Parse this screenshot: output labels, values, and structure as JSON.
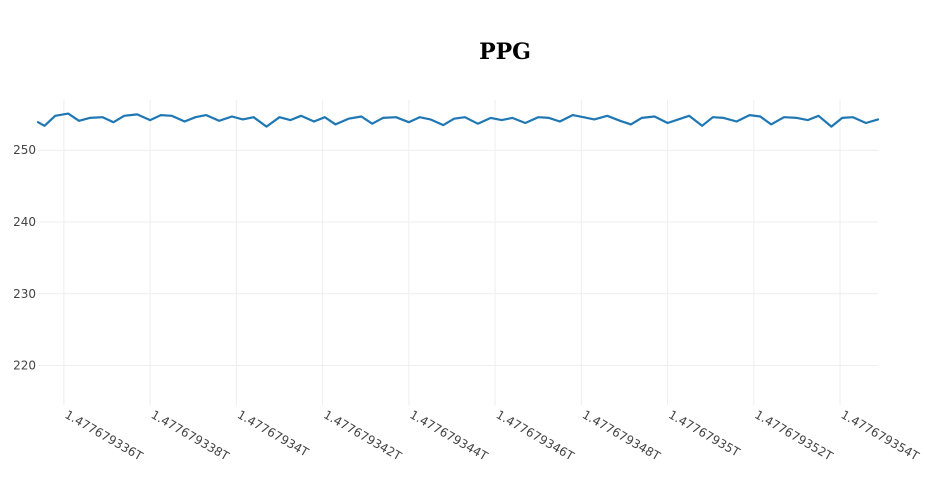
{
  "chart_data": {
    "type": "line",
    "title": "PPG",
    "xlabel": "",
    "ylabel": "",
    "grid": true,
    "legend": "none",
    "color": "#1f77b4",
    "xlim": [
      1.4776793354,
      1.47767935488
    ],
    "ylim": [
      214.5,
      257
    ],
    "y_ticks": [
      {
        "value": 220,
        "label": "220"
      },
      {
        "value": 230,
        "label": "230"
      },
      {
        "value": 240,
        "label": "240"
      },
      {
        "value": 250,
        "label": "250"
      }
    ],
    "x_ticks": [
      {
        "value": 1.477679336,
        "label": "1.477679336T"
      },
      {
        "value": 1.477679338,
        "label": "1.477679338T"
      },
      {
        "value": 1.47767934,
        "label": "1.47767934T"
      },
      {
        "value": 1.477679342,
        "label": "1.477679342T"
      },
      {
        "value": 1.477679344,
        "label": "1.477679344T"
      },
      {
        "value": 1.477679346,
        "label": "1.477679346T"
      },
      {
        "value": 1.477679348,
        "label": "1.477679348T"
      },
      {
        "value": 1.47767935,
        "label": "1.47767935T"
      },
      {
        "value": 1.477679352,
        "label": "1.477679352T"
      },
      {
        "value": 1.477679354,
        "label": "1.477679354T"
      }
    ],
    "series": [
      {
        "x": [
          1.4776793354,
          1.47767933555,
          1.4776793358,
          1.4776793361,
          1.47767933635,
          1.4776793366,
          1.4776793369,
          1.47767933715,
          1.4776793374,
          1.4776793377,
          1.477679338,
          1.47767933825,
          1.4776793385,
          1.4776793388,
          1.47767933905,
          1.4776793393,
          1.4776793396,
          1.4776793399,
          1.47767934015,
          1.4776793404,
          1.4776793407,
          1.477679341,
          1.47767934125,
          1.4776793415,
          1.4776793418,
          1.47767934205,
          1.4776793423,
          1.4776793426,
          1.4776793429,
          1.47767934315,
          1.4776793434,
          1.4776793437,
          1.477679344,
          1.47767934425,
          1.4776793445,
          1.4776793448,
          1.47767934505,
          1.4776793453,
          1.4776793456,
          1.4776793459,
          1.47767934615,
          1.4776793464,
          1.4776793467,
          1.477679347,
          1.47767934725,
          1.4776793475,
          1.4776793478,
          1.47767934805,
          1.4776793483,
          1.4776793486,
          1.4776793489,
          1.47767934915,
          1.4776793494,
          1.4776793497,
          1.47767935,
          1.47767935025,
          1.4776793505,
          1.4776793508,
          1.47767935105,
          1.4776793513,
          1.4776793516,
          1.4776793519,
          1.47767935215,
          1.4776793524,
          1.4776793527,
          1.477679353,
          1.47767935325,
          1.4776793535,
          1.4776793538,
          1.47767935405,
          1.4776793543,
          1.4776793546,
          1.47767935488
        ],
        "y": [
          253.9,
          253.4,
          254.8,
          255.1,
          254.1,
          254.5,
          254.6,
          253.9,
          254.8,
          255.0,
          254.2,
          254.9,
          254.8,
          254.0,
          254.6,
          254.9,
          254.1,
          254.7,
          254.3,
          254.6,
          253.3,
          254.6,
          254.2,
          254.8,
          254.0,
          254.6,
          253.6,
          254.4,
          254.7,
          253.7,
          254.5,
          254.6,
          253.9,
          254.6,
          254.3,
          253.5,
          254.4,
          254.6,
          253.7,
          254.5,
          254.2,
          254.5,
          253.8,
          254.6,
          254.5,
          254.0,
          254.9,
          254.6,
          254.3,
          254.8,
          254.1,
          253.6,
          254.5,
          254.7,
          253.8,
          254.3,
          254.8,
          253.4,
          254.6,
          254.5,
          254.0,
          254.9,
          254.7,
          253.6,
          254.6,
          254.5,
          254.2,
          254.8,
          253.3,
          254.5,
          254.6,
          253.8,
          254.3
        ]
      }
    ]
  }
}
